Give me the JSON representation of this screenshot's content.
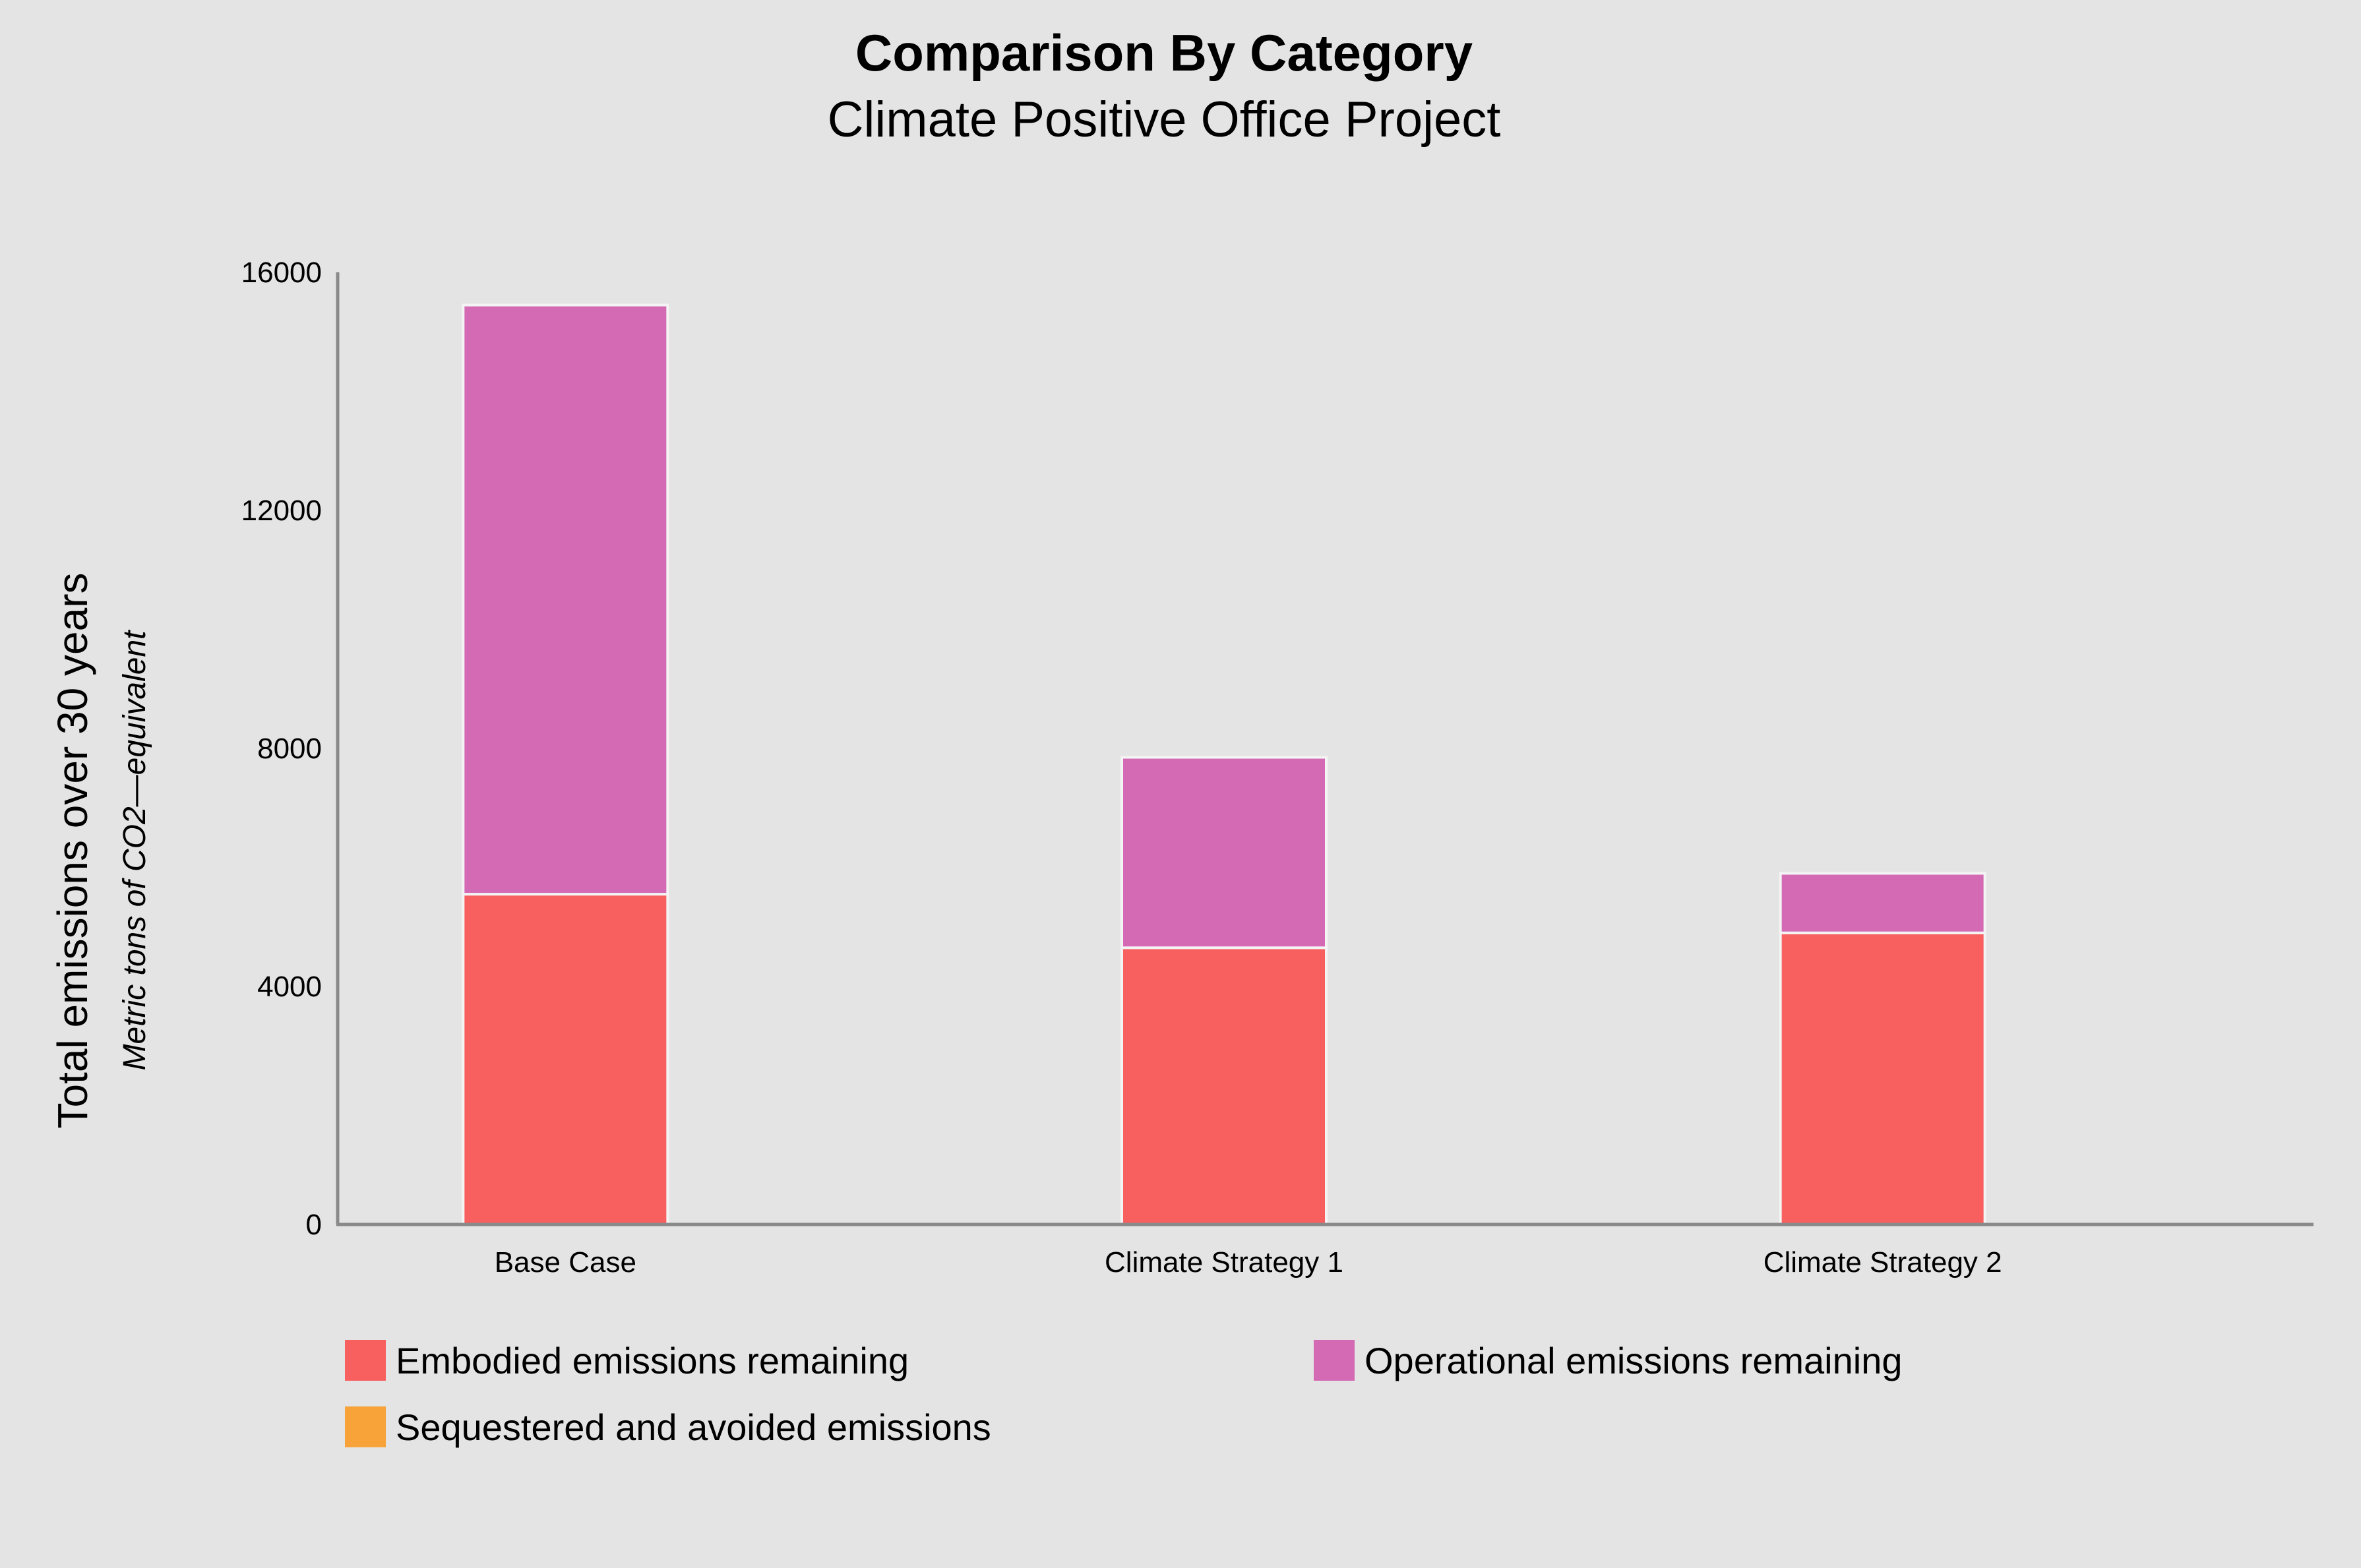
{
  "chart_data": {
    "type": "bar",
    "stacked": true,
    "title": "Comparison By Category",
    "subtitle": "Climate Positive Office Project",
    "ylabel": "Total emissions over 30 years",
    "ylabel_sub": "Metric tons of CO2—equivalent",
    "xlabel": "",
    "ylim": [
      0,
      16000
    ],
    "yticks": [
      "0",
      "4000",
      "8000",
      "12000",
      "16000"
    ],
    "ytick_values": [
      0,
      4000,
      8000,
      12000,
      16000
    ],
    "categories": [
      "Base Case",
      "Climate Strategy 1",
      "Climate Strategy 2"
    ],
    "series": [
      {
        "name": "Embodied emissions remaining",
        "values": [
          5550,
          4650,
          4900
        ],
        "color": "#f85f5f"
      },
      {
        "name": "Operational emissions remaining",
        "values": [
          9900,
          3200,
          1000
        ],
        "color": "#d46ab4"
      },
      {
        "name": "Sequestered and avoided emissions",
        "values": [
          0,
          0,
          0
        ],
        "color": "#f8a23a"
      }
    ],
    "grid": false,
    "legend_position": "bottom"
  }
}
